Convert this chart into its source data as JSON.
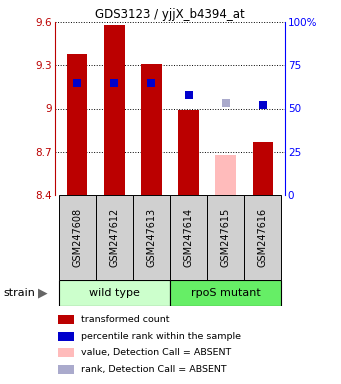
{
  "title": "GDS3123 / yjjX_b4394_at",
  "samples": [
    "GSM247608",
    "GSM247612",
    "GSM247613",
    "GSM247614",
    "GSM247615",
    "GSM247616"
  ],
  "transformed_counts": [
    9.38,
    9.58,
    9.31,
    8.99,
    8.68,
    8.77
  ],
  "percentile_ranks": [
    65,
    65,
    65,
    58,
    53,
    52
  ],
  "absent_value": [
    false,
    false,
    false,
    false,
    true,
    false
  ],
  "absent_rank": [
    false,
    false,
    false,
    false,
    true,
    false
  ],
  "bar_bottom": 8.4,
  "ylim_left": [
    8.4,
    9.6
  ],
  "ylim_right": [
    0,
    100
  ],
  "yticks_left": [
    8.4,
    8.7,
    9.0,
    9.3,
    9.6
  ],
  "ytick_labels_left": [
    "8.4",
    "8.7",
    "9",
    "9.3",
    "9.6"
  ],
  "yticks_right": [
    0,
    25,
    50,
    75,
    100
  ],
  "ytick_labels_right": [
    "0",
    "25",
    "50",
    "75",
    "100%"
  ],
  "color_red_bar": "#bb0000",
  "color_pink_bar": "#ffbbbb",
  "color_blue_dot": "#0000cc",
  "color_light_blue_dot": "#aaaacc",
  "wt_color": "#ccffcc",
  "rpos_color": "#66ee66",
  "group_names": [
    "wild type",
    "rpoS mutant"
  ],
  "strain_label": "strain",
  "bar_width": 0.55,
  "dot_size": 28,
  "legend_items": [
    {
      "color": "#bb0000",
      "label": "transformed count"
    },
    {
      "color": "#0000cc",
      "label": "percentile rank within the sample"
    },
    {
      "color": "#ffbbbb",
      "label": "value, Detection Call = ABSENT"
    },
    {
      "color": "#aaaacc",
      "label": "rank, Detection Call = ABSENT"
    }
  ]
}
